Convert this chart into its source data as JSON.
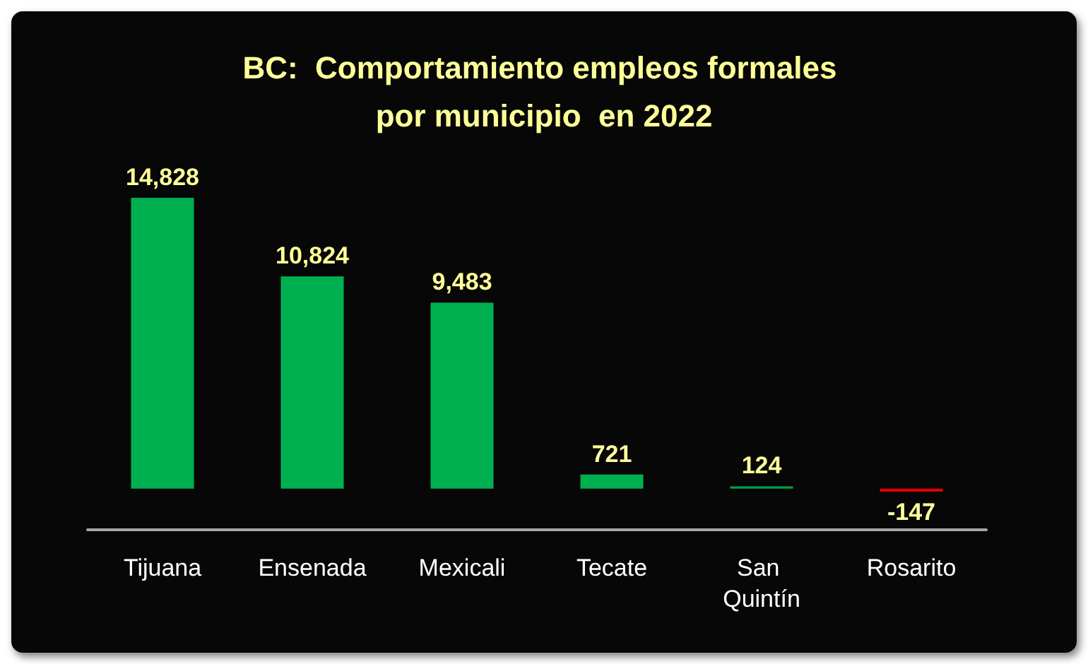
{
  "chart_data": {
    "type": "bar",
    "title": "BC:  Comportamiento empleos formales por municipio  en 2022",
    "categories": [
      "Tijuana",
      "Ensenada",
      "Mexicali",
      "Tecate",
      "San Quintín",
      "Rosarito"
    ],
    "values": [
      14828,
      10824,
      9483,
      721,
      124,
      -147
    ],
    "value_labels": [
      "14,828",
      "10,824",
      "9,483",
      "721",
      "124",
      "-147"
    ],
    "colors": [
      "#00b050",
      "#00b050",
      "#00b050",
      "#00b050",
      "#00a046",
      "#e00000"
    ],
    "grid": false
  }
}
